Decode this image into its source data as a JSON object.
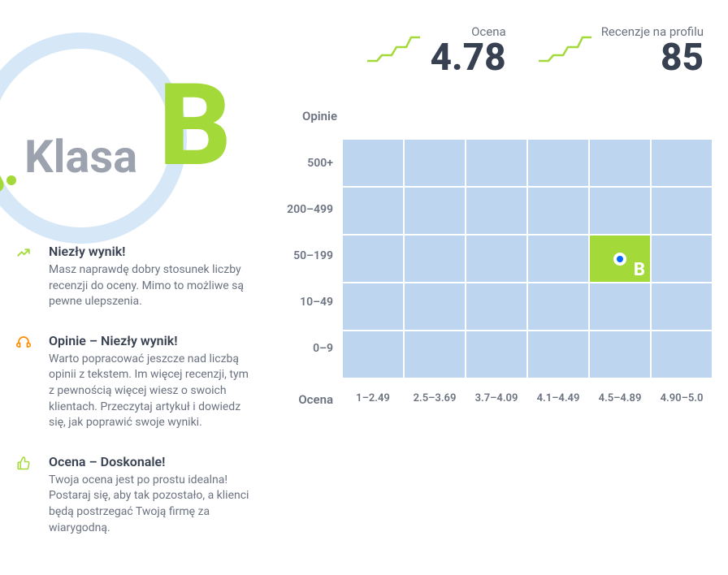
{
  "grade": {
    "label": "Klasa",
    "letter": "B",
    "letter_color": "#a3d938",
    "label_color": "#9ca3af",
    "circle_color": "#d6e8f7"
  },
  "metrics": {
    "score": {
      "label": "Ocena",
      "value": "4.78",
      "spark_color": "#a3d938"
    },
    "reviews": {
      "label": "Recenzje na profilu",
      "value": "85",
      "spark_color": "#a3d938"
    }
  },
  "info": [
    {
      "icon": "trend-up",
      "icon_color": "#a3d938",
      "title": "Niezły wynik!",
      "desc": "Masz naprawdę dobry stosunek liczby recenzji do oceny. Mimo to możliwe są pewne ulepszenia."
    },
    {
      "icon": "headphones",
      "icon_color": "#ff8c00",
      "title": "Opinie – Niezły wynik!",
      "desc": "Warto popracować jeszcze nad liczbą opinii z tekstem. Im więcej recenzji, tym z pewnością więcej wiesz o swoich klientach. Przeczytaj artykuł i dowiedz się, jak poprawić swoje wyniki."
    },
    {
      "icon": "thumb-up",
      "icon_color": "#a3d938",
      "title": "Ocena – Doskonale!",
      "desc": "Twoja ocena jest po prostu idealna! Postaraj się, aby tak pozostało, a klienci będą postrzegać Twoją firmę za wiarygodną."
    }
  ],
  "chart": {
    "y_label": "Opinie",
    "x_label": "Ocena",
    "y_ticks": [
      "500+",
      "200–499",
      "50–199",
      "10–49",
      "0–9"
    ],
    "x_ticks": [
      "1–2.49",
      "2.5–3.69",
      "3.7–4.09",
      "4.1–4.49",
      "4.5–4.89",
      "4.90–5.0"
    ],
    "cell_color": "#bdd5ee",
    "active_cell_color": "#a3d938",
    "active_row": 2,
    "active_col": 4,
    "active_letter": "B",
    "marker_outer": "#ffffff",
    "marker_inner": "#0066ff"
  }
}
